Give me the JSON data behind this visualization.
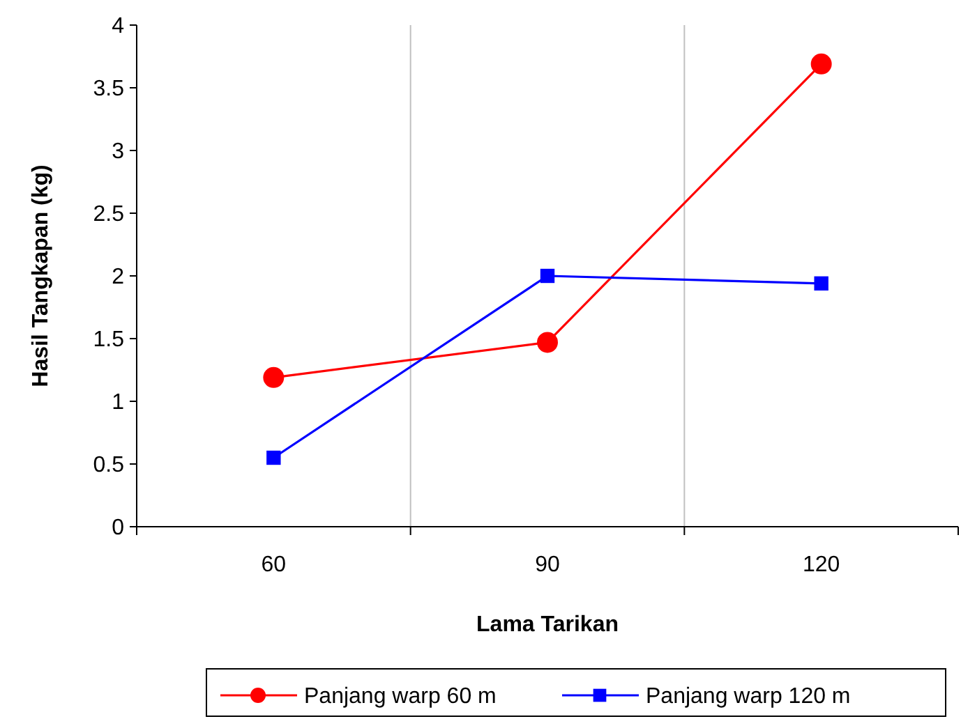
{
  "chart_data": {
    "type": "line",
    "xlabel": "Lama Tarikan",
    "ylabel": "Hasil Tangkapan (kg)",
    "categories": [
      "60",
      "90",
      "120"
    ],
    "series": [
      {
        "name": "Panjang warp 60 m",
        "color": "#ff0000",
        "marker": "circle",
        "values": [
          1.19,
          1.47,
          3.69
        ]
      },
      {
        "name": "Panjang warp 120 m",
        "color": "#0000ff",
        "marker": "square",
        "values": [
          0.55,
          2.0,
          1.94
        ]
      }
    ],
    "ylim": [
      0,
      4
    ],
    "yticks": [
      0,
      {
        "value": 0.5,
        "label": "0.5"
      },
      1,
      {
        "value": 1.5,
        "label": "1.5"
      },
      2,
      {
        "value": 2.5,
        "label": "2.5"
      },
      3,
      {
        "value": 3.5,
        "label": "3.5"
      },
      4
    ],
    "grid": "x",
    "legend": "bottom"
  }
}
